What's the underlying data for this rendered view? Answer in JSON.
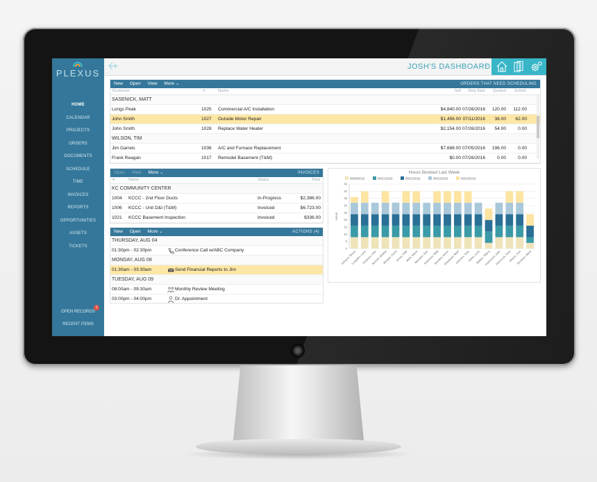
{
  "app": {
    "logo": "PLEXUS",
    "dashboard_title": "JOSH'S DASHBOARD"
  },
  "sidebar": {
    "items": [
      {
        "label": "HOME",
        "active": true
      },
      {
        "label": "CALENDAR"
      },
      {
        "label": "PROJECTS"
      },
      {
        "label": "ORDERS"
      },
      {
        "label": "DOCUMENTS"
      },
      {
        "label": "SCHEDULE"
      },
      {
        "label": "TIME"
      },
      {
        "label": "INVOICES"
      },
      {
        "label": "REPORTS"
      },
      {
        "label": "OPPORTUNITIES"
      },
      {
        "label": "ASSETS"
      },
      {
        "label": "TICKETS"
      }
    ],
    "bottom": [
      {
        "label": "OPEN RECORDS",
        "badge": "1"
      },
      {
        "label": "RECENT ITEMS"
      }
    ]
  },
  "header": {
    "icons": [
      "home-icon",
      "documents-icon",
      "settings-icon"
    ]
  },
  "orders": {
    "toolbar": {
      "new": "New",
      "open": "Open",
      "view": "View",
      "more": "More",
      "title": "ORDERS THAT NEED SCHEDULING"
    },
    "columns": {
      "customer": "Customer",
      "num": "#",
      "name": "Name",
      "sell": "Sell",
      "req_start": "Req Start",
      "quoted": "Quoted",
      "sched": "Sched."
    },
    "rows": [
      {
        "group": "SASENICK, MATT"
      },
      {
        "customer": "Longs Peak",
        "num": "1025",
        "name": "Commercial A/C Installation",
        "sell": "$4,840.00",
        "req_start": "07/26/2016",
        "quoted": "120.00",
        "sched": "112.00"
      },
      {
        "customer": "John Smith",
        "num": "1027",
        "name": "Outside Motor Repair",
        "sell": "$1,456.00",
        "req_start": "07/11/2016",
        "quoted": "38.00",
        "sched": "62.00",
        "highlight": true
      },
      {
        "customer": "John Smith",
        "num": "1028",
        "name": "Replace Water Heater",
        "sell": "$2,154.00",
        "req_start": "07/26/2016",
        "quoted": "54.00",
        "sched": "0.00"
      },
      {
        "group": "WILSON, TIM"
      },
      {
        "customer": "Jim Garrels",
        "num": "1036",
        "name": "A/C and Furnace Replacement",
        "sell": "$7,688.00",
        "req_start": "07/05/2016",
        "quoted": "196.00",
        "sched": "0.00"
      },
      {
        "customer": "Frank Reagan",
        "num": "1017",
        "name": "Remodel Basement (T&M)",
        "sell": "$0.00",
        "req_start": "07/26/2016",
        "quoted": "0.00",
        "sched": "0.00"
      }
    ]
  },
  "invoices": {
    "toolbar": {
      "open": "Open",
      "view": "View",
      "more": "More",
      "title": "INVOICES"
    },
    "columns": {
      "num": "#",
      "name": "Name",
      "status": "Status",
      "total": "Total"
    },
    "group": "KC COMMUNITY CENTER",
    "rows": [
      {
        "num": "1004",
        "name": "KCCC - 2nd Floor Ducts",
        "status": "In-Progress",
        "total": "$2,386.00"
      },
      {
        "num": "1006",
        "name": "KCCC - Unit D&I (T&M)",
        "status": "Invoiced",
        "total": "$6,723.00"
      },
      {
        "num": "1021",
        "name": "KCCC Basement Inspection",
        "status": "Invoiced",
        "total": "$336.00"
      }
    ]
  },
  "actions": {
    "toolbar": {
      "new": "New",
      "open": "Open",
      "more": "More",
      "title": "ACTIONS (4)"
    },
    "days": [
      {
        "day": "THURSDAY, AUG 04",
        "items": [
          {
            "time": "01:30pm - 02:30pm",
            "icon": "phone-icon",
            "label": "Conference Call w/ABC Company"
          }
        ]
      },
      {
        "day": "MONDAY, AUG 08",
        "items": [
          {
            "time": "01:30am - 03:30am",
            "icon": "email-icon",
            "label": "Send Financial Reports to Jim",
            "highlight": true
          }
        ]
      },
      {
        "day": "TUESDAY, AUG 09",
        "items": [
          {
            "time": "08:00am - 09:30am",
            "icon": "meeting-icon",
            "label": "Monthly Review Meeting"
          },
          {
            "time": "03:00pm - 04:00pm",
            "icon": "person-icon",
            "label": "Dr. Appointment"
          }
        ]
      }
    ]
  },
  "chart_data": {
    "type": "bar",
    "stacked": true,
    "title": "Hours Booked Last Week",
    "ylabel": "Hours",
    "ylim": [
      0,
      45
    ],
    "yticks": [
      0,
      5,
      10,
      15,
      20,
      25,
      30,
      35,
      40,
      45
    ],
    "legend_position": "top",
    "grid": true,
    "categories": [
      "Johnson, Bruce",
      "Longden, Larry",
      "Tompson, Alan",
      "Nichols, Bobbie",
      "Morgan, Gerrit",
      "Jones, Pete",
      "Mark, Steve",
      "Marsden, Dan",
      "Robinson, Matt",
      "Sanders, Kevin",
      "Sheppard, Mark",
      "Johnson, Tyler",
      "Salvo, Lane",
      "Walker, Tiffany",
      "Hammond, Jake",
      "Hitchcock, Gary",
      "Wilson, Tom",
      "Nicolson, Mack"
    ],
    "series": [
      {
        "name": "08/08/2016",
        "color": "#efe3b9",
        "values": [
          8,
          8,
          8,
          8,
          8,
          8,
          8,
          8,
          8,
          8,
          8,
          8,
          8,
          4,
          8,
          8,
          8,
          4
        ]
      },
      {
        "name": "08/21/2016",
        "color": "#3b9aa7",
        "values": [
          8,
          8,
          8,
          8,
          8,
          8,
          8,
          8,
          8,
          8,
          8,
          8,
          8,
          8,
          8,
          8,
          8,
          4
        ]
      },
      {
        "name": "08/22/2016",
        "color": "#2a6f96",
        "values": [
          8,
          8,
          8,
          8,
          8,
          8,
          8,
          8,
          8,
          8,
          8,
          8,
          8,
          8,
          8,
          8,
          8,
          8
        ]
      },
      {
        "name": "08/23/2016",
        "color": "#a9c8da",
        "values": [
          8,
          8,
          8,
          8,
          8,
          8,
          8,
          8,
          8,
          8,
          8,
          8,
          8,
          0,
          8,
          8,
          8,
          0
        ]
      },
      {
        "name": "08/24/2016",
        "color": "#fde4a1",
        "values": [
          4,
          8,
          0,
          8,
          0,
          8,
          8,
          0,
          8,
          8,
          8,
          8,
          0,
          8,
          0,
          8,
          8,
          8
        ]
      }
    ]
  }
}
